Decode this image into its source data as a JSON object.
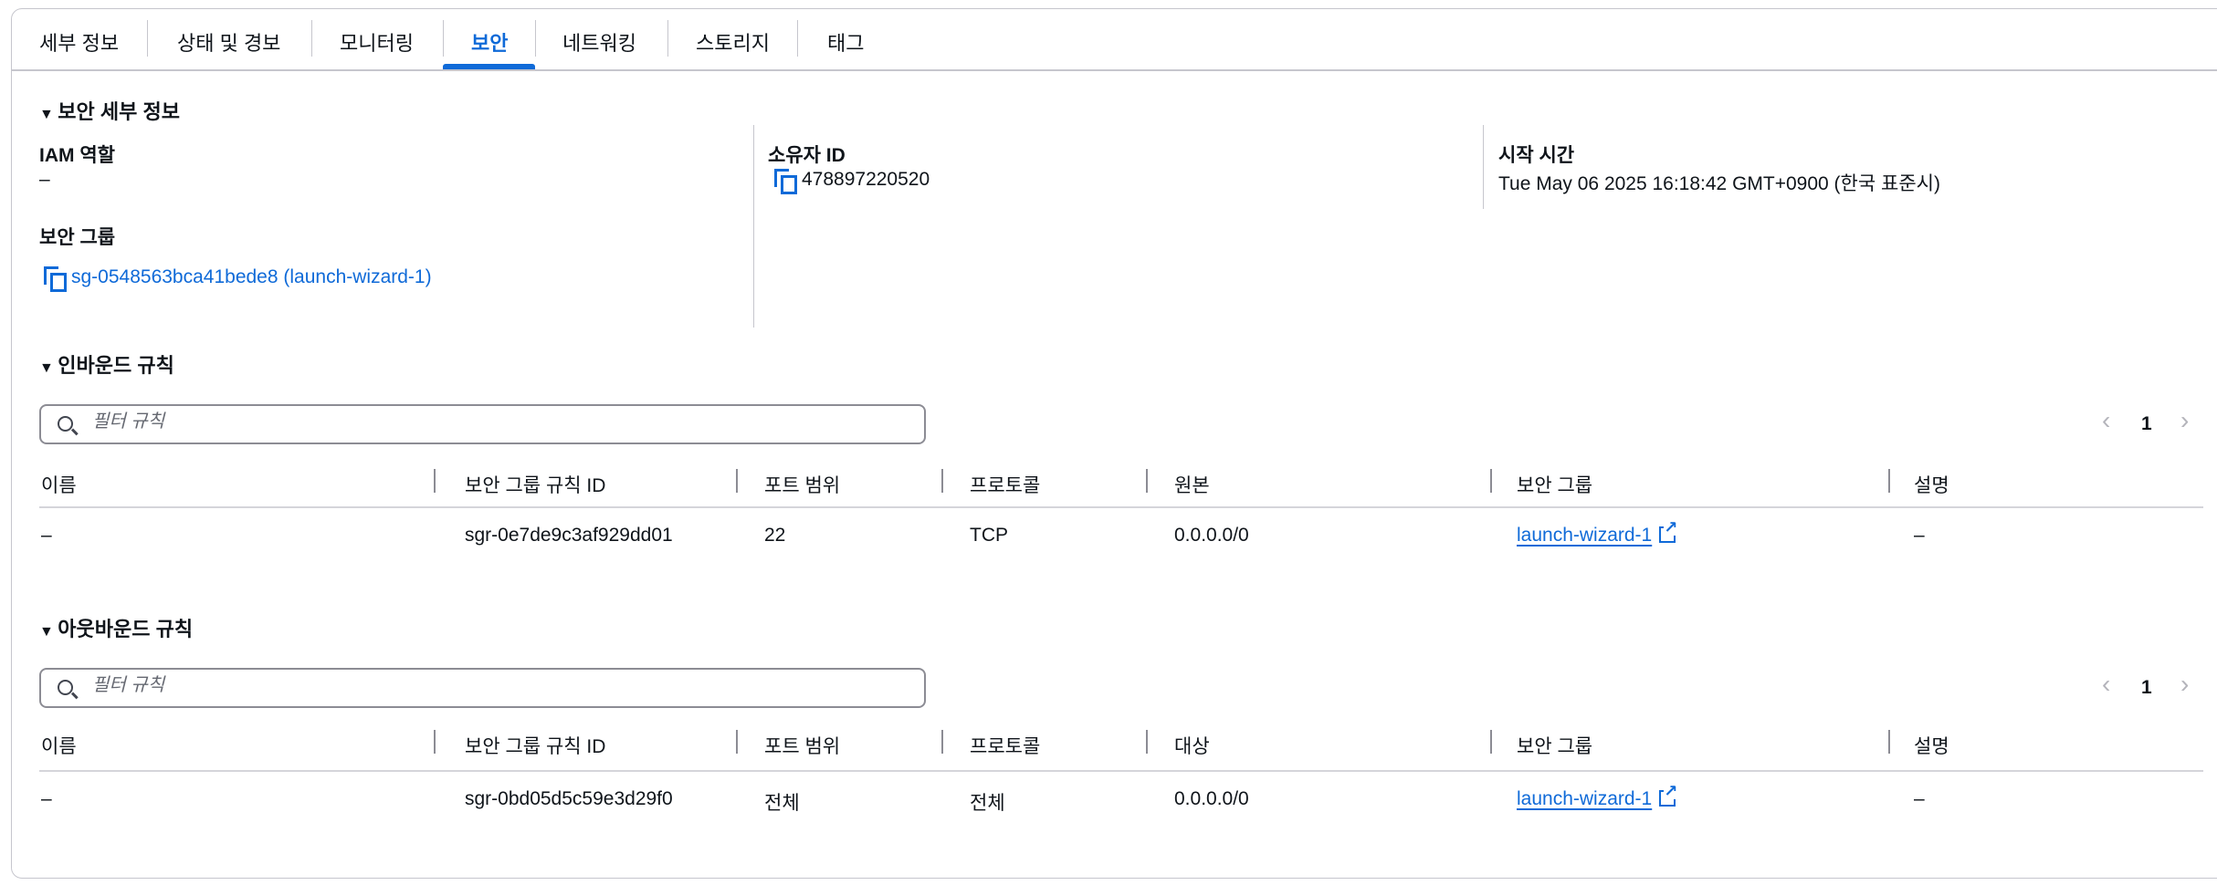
{
  "tabs": [
    {
      "label": "세부 정보"
    },
    {
      "label": "상태 및 경보"
    },
    {
      "label": "모니터링"
    },
    {
      "label": "보안",
      "active": true
    },
    {
      "label": "네트워킹"
    },
    {
      "label": "스토리지"
    },
    {
      "label": "태그"
    }
  ],
  "details": {
    "title": "보안 세부 정보",
    "iam_label": "IAM 역할",
    "iam_value": "–",
    "sg_label": "보안 그룹",
    "sg_value": "sg-0548563bca41bede8 (launch-wizard-1)",
    "owner_label": "소유자 ID",
    "owner_value": "478897220520",
    "start_label": "시작 시간",
    "start_value": "Tue May 06 2025 16:18:42 GMT+0900 (한국 표준시)"
  },
  "inbound": {
    "title": "인바운드 규칙",
    "filter_placeholder": "필터 규칙",
    "page": "1",
    "columns": [
      "이름",
      "보안 그룹 규칙 ID",
      "포트 범위",
      "프로토콜",
      "원본",
      "보안 그룹",
      "설명"
    ],
    "rows": [
      [
        "–",
        "sgr-0e7de9c3af929dd01",
        "22",
        "TCP",
        "0.0.0.0/0",
        "launch-wizard-1",
        "–"
      ]
    ]
  },
  "outbound": {
    "title": "아웃바운드 규칙",
    "filter_placeholder": "필터 규칙",
    "page": "1",
    "columns": [
      "이름",
      "보안 그룹 규칙 ID",
      "포트 범위",
      "프로토콜",
      "대상",
      "보안 그룹",
      "설명"
    ],
    "rows": [
      [
        "–",
        "sgr-0bd05d5c59e3d29f0",
        "전체",
        "전체",
        "0.0.0.0/0",
        "launch-wizard-1",
        "–"
      ]
    ]
  },
  "colors": {
    "accent": "#0f6ad8",
    "border": "#c6c6cd"
  }
}
